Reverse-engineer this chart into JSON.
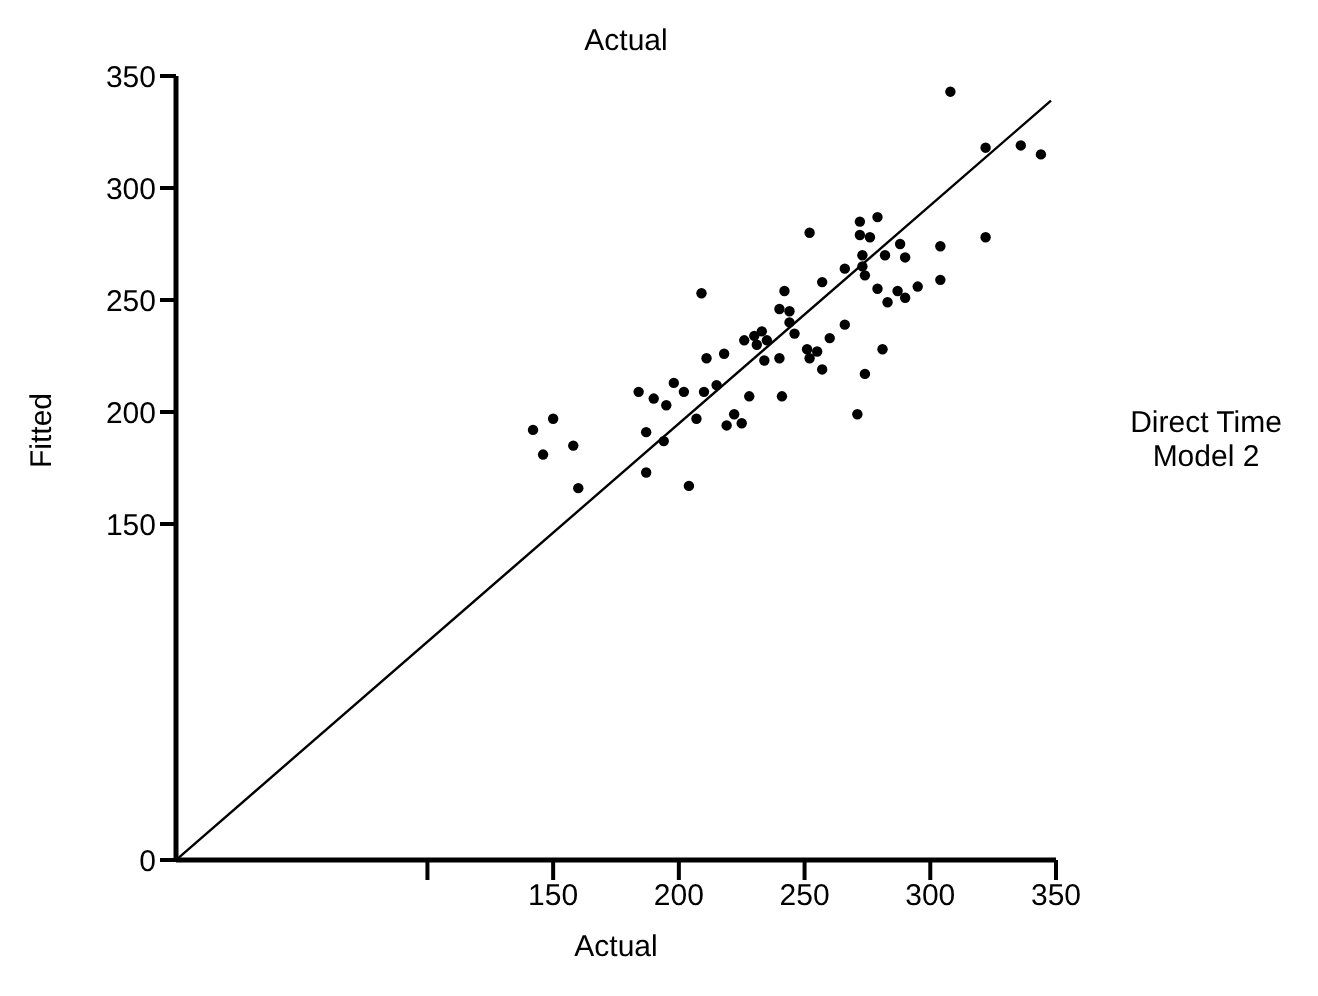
{
  "chart_data": {
    "type": "scatter",
    "xlabel": "Actual",
    "ylabel": "Fitted",
    "annotations": [
      "Actual",
      "Direct Time\nModel 2"
    ],
    "xlim": [
      0,
      350
    ],
    "ylim": [
      0,
      350
    ],
    "xticks": [
      {
        "value": 100,
        "label": null
      },
      150,
      200,
      250,
      300,
      350
    ],
    "yticks": [
      0,
      150,
      200,
      250,
      300,
      350
    ],
    "marker": "circle",
    "series": [
      {
        "color": "#000000",
        "x": [
          142,
          150,
          146,
          158,
          160,
          187,
          184,
          190,
          195,
          198,
          202,
          187,
          194,
          204,
          207,
          209,
          210,
          211,
          215,
          218,
          219,
          222,
          225,
          228,
          226,
          230,
          233,
          231,
          235,
          234,
          240,
          241,
          240,
          242,
          244,
          244,
          246,
          252,
          251,
          252,
          255,
          257,
          257,
          260,
          266,
          266,
          272,
          272,
          276,
          279,
          273,
          273,
          274,
          279,
          274,
          271,
          281,
          282,
          283,
          287,
          288,
          290,
          290,
          295,
          304,
          304,
          308,
          322,
          322,
          336,
          344
        ],
        "values": [
          192,
          197,
          181,
          185,
          166,
          191,
          209,
          206,
          203,
          213,
          209,
          173,
          187,
          167,
          197,
          253,
          209,
          224,
          212,
          226,
          194,
          199,
          195,
          207,
          232,
          234,
          236,
          230,
          232,
          223,
          224,
          207,
          246,
          254,
          245,
          240,
          235,
          280,
          228,
          224,
          227,
          219,
          258,
          233,
          239,
          264,
          285,
          279,
          278,
          287,
          270,
          265,
          261,
          255,
          217,
          199,
          228,
          270,
          249,
          254,
          275,
          269,
          251,
          256,
          274,
          259,
          343,
          318,
          278,
          319,
          315
        ]
      },
      {
        "type": "line",
        "color": "#000000",
        "line_style": "solid",
        "marker": "none",
        "x": [
          0,
          348
        ],
        "values": [
          0,
          339
        ]
      }
    ]
  }
}
